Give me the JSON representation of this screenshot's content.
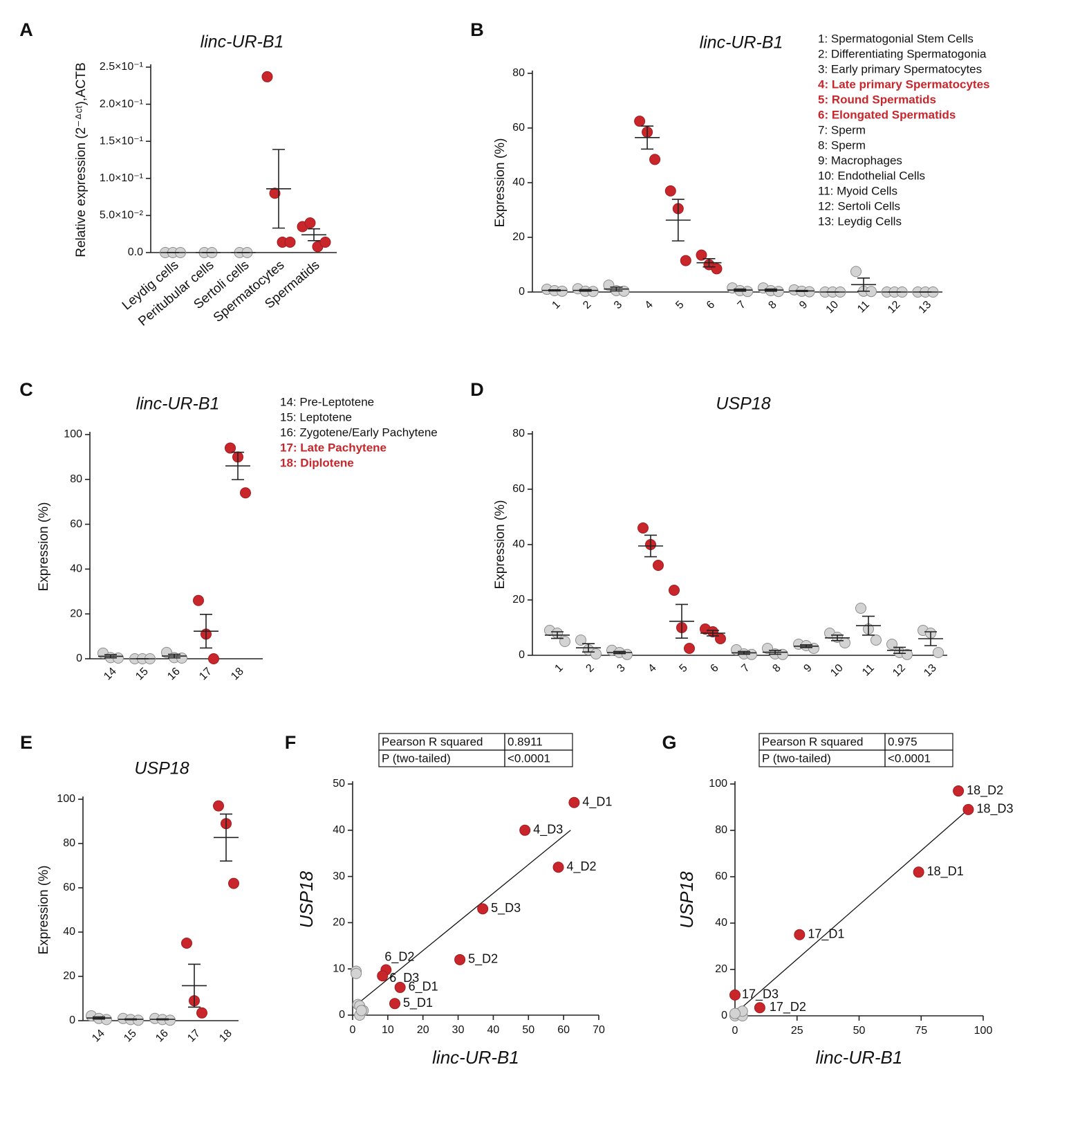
{
  "chart_data": [
    {
      "type": "dotplot",
      "panel": "A",
      "title": "linc-UR-B1",
      "ylabel": "Relative expression (2⁻ᐞᶜᵗ),ACTB",
      "categories": [
        "Leydig cells",
        "Peritubular cells",
        "Sertoli cells",
        "Spermatocytes",
        "Spermatids"
      ],
      "groups": [
        {
          "values": [
            0,
            0,
            0
          ],
          "mean": 0,
          "sem": 0,
          "color": "#d3d3d3"
        },
        {
          "values": [
            0,
            0
          ],
          "mean": 0,
          "sem": 0,
          "color": "#d3d3d3"
        },
        {
          "values": [
            0,
            0
          ],
          "mean": 0,
          "sem": 0,
          "color": "#d3d3d3"
        },
        {
          "values": [
            0.237,
            0.08,
            0.014,
            0.014
          ],
          "mean": 0.086,
          "sem": 0.053,
          "color": "#c8262b"
        },
        {
          "values": [
            0.035,
            0.04,
            0.008,
            0.014
          ],
          "mean": 0.024,
          "sem": 0.008,
          "color": "#c8262b"
        }
      ],
      "ylim": [
        0,
        0.25
      ],
      "yticks": [
        {
          "value": 0,
          "label": "0.0"
        },
        {
          "value": 0.05,
          "label": "5.0×10⁻²"
        },
        {
          "value": 0.1,
          "label": "1.0×10⁻¹"
        },
        {
          "value": 0.15,
          "label": "1.5×10⁻¹"
        },
        {
          "value": 0.2,
          "label": "2.0×10⁻¹"
        },
        {
          "value": 0.25,
          "label": "2.5×10⁻¹"
        }
      ]
    },
    {
      "type": "dotplot",
      "panel": "B",
      "title": "linc-UR-B1",
      "ylabel": "Expression (%)",
      "categories": [
        "1",
        "2",
        "3",
        "4",
        "5",
        "6",
        "7",
        "8",
        "9",
        "10",
        "11",
        "12",
        "13"
      ],
      "groups": [
        {
          "values": [
            1,
            0.5,
            0.3
          ],
          "mean": 0.6,
          "sem": 0.2,
          "color": "#d3d3d3"
        },
        {
          "values": [
            1.2,
            0.3,
            0.2
          ],
          "mean": 0.6,
          "sem": 0.3,
          "color": "#d3d3d3"
        },
        {
          "values": [
            2.5,
            0.5,
            0.3
          ],
          "mean": 1.1,
          "sem": 0.7,
          "color": "#d3d3d3"
        },
        {
          "values": [
            62.5,
            58.5,
            48.5
          ],
          "mean": 56.5,
          "sem": 4.2,
          "color": "#c8262b"
        },
        {
          "values": [
            37,
            30.5,
            11.5
          ],
          "mean": 26.3,
          "sem": 7.6,
          "color": "#c8262b"
        },
        {
          "values": [
            13.5,
            10,
            8.5
          ],
          "mean": 10.7,
          "sem": 1.5,
          "color": "#c8262b"
        },
        {
          "values": [
            1.5,
            0.5,
            0.2
          ],
          "mean": 0.7,
          "sem": 0.4,
          "color": "#d3d3d3"
        },
        {
          "values": [
            1.5,
            0.5,
            0.2
          ],
          "mean": 0.7,
          "sem": 0.4,
          "color": "#d3d3d3"
        },
        {
          "values": [
            0.8,
            0.3,
            0.1
          ],
          "mean": 0.4,
          "sem": 0.2,
          "color": "#d3d3d3"
        },
        {
          "values": [
            0,
            0,
            0
          ],
          "mean": 0,
          "sem": 0,
          "color": "#d3d3d3"
        },
        {
          "values": [
            7.5,
            0.3,
            0.2
          ],
          "mean": 2.7,
          "sem": 2.4,
          "color": "#d3d3d3"
        },
        {
          "values": [
            0,
            0,
            0
          ],
          "mean": 0,
          "sem": 0,
          "color": "#d3d3d3"
        },
        {
          "values": [
            0,
            0,
            0
          ],
          "mean": 0,
          "sem": 0,
          "color": "#d3d3d3"
        }
      ],
      "ylim": [
        0,
        80
      ],
      "yticks": [
        0,
        20,
        40,
        60,
        80
      ],
      "key": [
        {
          "label": "1: Spermatogonial Stem Cells",
          "color": "#111111"
        },
        {
          "label": "2: Differentiating Spermatogonia",
          "color": "#111111"
        },
        {
          "label": "3: Early primary Spermatocytes",
          "color": "#111111"
        },
        {
          "label": "4: Late primary Spermatocytes",
          "color": "#c8262b"
        },
        {
          "label": "5: Round Spermatids",
          "color": "#c8262b"
        },
        {
          "label": "6: Elongated Spermatids",
          "color": "#c8262b"
        },
        {
          "label": "7: Sperm",
          "color": "#111111"
        },
        {
          "label": "8: Sperm",
          "color": "#111111"
        },
        {
          "label": "9: Macrophages",
          "color": "#111111"
        },
        {
          "label": "10: Endothelial Cells",
          "color": "#111111"
        },
        {
          "label": "11: Myoid Cells",
          "color": "#111111"
        },
        {
          "label": "12: Sertoli Cells",
          "color": "#111111"
        },
        {
          "label": "13: Leydig Cells",
          "color": "#111111"
        }
      ]
    },
    {
      "type": "dotplot",
      "panel": "C",
      "title": "linc-UR-B1",
      "ylabel": "Expression (%)",
      "categories": [
        "14",
        "15",
        "16",
        "17",
        "18"
      ],
      "groups": [
        {
          "values": [
            2.5,
            0.5,
            0.3
          ],
          "mean": 1.1,
          "sem": 0.7,
          "color": "#d3d3d3"
        },
        {
          "values": [
            0,
            0,
            0
          ],
          "mean": 0,
          "sem": 0,
          "color": "#d3d3d3"
        },
        {
          "values": [
            2.8,
            0.5,
            0.3
          ],
          "mean": 1.2,
          "sem": 0.8,
          "color": "#d3d3d3"
        },
        {
          "values": [
            26,
            11,
            0
          ],
          "mean": 12.3,
          "sem": 7.5,
          "color": "#c8262b"
        },
        {
          "values": [
            94,
            90,
            74
          ],
          "mean": 86,
          "sem": 6.1,
          "color": "#c8262b"
        }
      ],
      "ylim": [
        0,
        100
      ],
      "yticks": [
        0,
        20,
        40,
        60,
        80,
        100
      ],
      "key": [
        {
          "label": "14: Pre-Leptotene",
          "color": "#111111"
        },
        {
          "label": "15: Leptotene",
          "color": "#111111"
        },
        {
          "label": "16: Zygotene/Early Pachytene",
          "color": "#111111"
        },
        {
          "label": "17: Late Pachytene",
          "color": "#c8262b"
        },
        {
          "label": "18: Diplotene",
          "color": "#c8262b"
        }
      ]
    },
    {
      "type": "dotplot",
      "panel": "D",
      "title": "USP18",
      "ylabel": "Expression (%)",
      "categories": [
        "1",
        "2",
        "3",
        "4",
        "5",
        "6",
        "7",
        "8",
        "9",
        "10",
        "11",
        "12",
        "13"
      ],
      "groups": [
        {
          "values": [
            9,
            8,
            5
          ],
          "mean": 7.3,
          "sem": 1.2,
          "color": "#d3d3d3"
        },
        {
          "values": [
            5.5,
            2,
            0.5
          ],
          "mean": 2.7,
          "sem": 1.5,
          "color": "#d3d3d3"
        },
        {
          "values": [
            1.8,
            1,
            0.3
          ],
          "mean": 1,
          "sem": 0.4,
          "color": "#d3d3d3"
        },
        {
          "values": [
            46,
            40,
            32.5
          ],
          "mean": 39.5,
          "sem": 3.9,
          "color": "#c8262b"
        },
        {
          "values": [
            23.5,
            10,
            2.5
          ],
          "mean": 12.3,
          "sem": 6.1,
          "color": "#c8262b"
        },
        {
          "values": [
            9.5,
            8.5,
            6
          ],
          "mean": 8,
          "sem": 1,
          "color": "#c8262b"
        },
        {
          "values": [
            2,
            0.5,
            0.3
          ],
          "mean": 0.9,
          "sem": 0.5,
          "color": "#d3d3d3"
        },
        {
          "values": [
            2.5,
            0.5,
            0.3
          ],
          "mean": 1.1,
          "sem": 0.7,
          "color": "#d3d3d3"
        },
        {
          "values": [
            4,
            3.5,
            2.5
          ],
          "mean": 3.3,
          "sem": 0.5,
          "color": "#d3d3d3"
        },
        {
          "values": [
            8,
            6.5,
            4.5
          ],
          "mean": 6.3,
          "sem": 1,
          "color": "#d3d3d3"
        },
        {
          "values": [
            17,
            9.5,
            5.5
          ],
          "mean": 10.7,
          "sem": 3.4,
          "color": "#d3d3d3"
        },
        {
          "values": [
            4,
            1,
            0.3
          ],
          "mean": 1.8,
          "sem": 1.1,
          "color": "#d3d3d3"
        },
        {
          "values": [
            9,
            8,
            1
          ],
          "mean": 6,
          "sem": 2.5,
          "color": "#d3d3d3"
        }
      ],
      "ylim": [
        0,
        80
      ],
      "yticks": [
        0,
        20,
        40,
        60,
        80
      ]
    },
    {
      "type": "dotplot",
      "panel": "E",
      "title": "USP18",
      "ylabel": "Expression (%)",
      "categories": [
        "14",
        "15",
        "16",
        "17",
        "18"
      ],
      "groups": [
        {
          "values": [
            2.2,
            1,
            0.5
          ],
          "mean": 1.2,
          "sem": 0.5,
          "color": "#d3d3d3"
        },
        {
          "values": [
            1,
            0.5,
            0.2
          ],
          "mean": 0.6,
          "sem": 0.2,
          "color": "#d3d3d3"
        },
        {
          "values": [
            1,
            0.5,
            0.2
          ],
          "mean": 0.6,
          "sem": 0.2,
          "color": "#d3d3d3"
        },
        {
          "values": [
            35,
            9,
            3.5
          ],
          "mean": 15.8,
          "sem": 9.7,
          "color": "#c8262b"
        },
        {
          "values": [
            97,
            89,
            62
          ],
          "mean": 82.7,
          "sem": 10.6,
          "color": "#c8262b"
        }
      ],
      "ylim": [
        0,
        100
      ],
      "yticks": [
        0,
        20,
        40,
        60,
        80,
        100
      ]
    },
    {
      "type": "scatter",
      "panel": "F",
      "xlabel": "linc-UR-B1",
      "ylabel": "USP18",
      "table": [
        [
          "Pearson R squared",
          "0.8911"
        ],
        [
          "P (two-tailed)",
          "<0.0001"
        ]
      ],
      "x": [
        63,
        49,
        58.5,
        37,
        30.5,
        9.5,
        8.5,
        13.5,
        12,
        1,
        1,
        1.5,
        2,
        3,
        2,
        2.5
      ],
      "y": [
        46,
        40,
        32,
        23,
        12,
        9.8,
        8.5,
        6,
        2.5,
        9.5,
        9,
        2.3,
        2,
        1,
        0,
        1
      ],
      "labels": [
        "4_D1",
        "4_D3",
        "4_D2",
        "5_D3",
        "5_D2",
        "6_D2",
        "6_D3",
        "6_D1",
        "5_D1",
        null,
        null,
        null,
        null,
        null,
        null,
        null
      ],
      "colors": [
        "#c8262b",
        "#c8262b",
        "#c8262b",
        "#c8262b",
        "#c8262b",
        "#c8262b",
        "#c8262b",
        "#c8262b",
        "#c8262b",
        "#d3d3d3",
        "#d3d3d3",
        "#d3d3d3",
        "#d3d3d3",
        "#d3d3d3",
        "#d3d3d3",
        "#d3d3d3"
      ],
      "fit": {
        "x": [
          1.5,
          62
        ],
        "y": [
          2.5,
          40
        ]
      },
      "xlim": [
        0,
        70
      ],
      "xticks": [
        0,
        10,
        20,
        30,
        40,
        50,
        60,
        70
      ],
      "ylim": [
        0,
        50
      ],
      "yticks": [
        0,
        10,
        20,
        30,
        40,
        50
      ]
    },
    {
      "type": "scatter",
      "panel": "G",
      "xlabel": "linc-UR-B1",
      "ylabel": "USP18",
      "table": [
        [
          "Pearson R squared",
          "0.975"
        ],
        [
          "P (two-tailed)",
          "<0.0001"
        ]
      ],
      "x": [
        90,
        94,
        74,
        26,
        0,
        10,
        0,
        1,
        3,
        3,
        0
      ],
      "y": [
        97,
        89,
        62,
        35,
        9,
        3.5,
        0,
        1,
        0,
        2,
        1
      ],
      "labels": [
        "18_D2",
        "18_D3",
        "18_D1",
        "17_D1",
        "17_D3",
        "17_D2",
        null,
        null,
        null,
        null,
        null
      ],
      "colors": [
        "#c8262b",
        "#c8262b",
        "#c8262b",
        "#c8262b",
        "#c8262b",
        "#c8262b",
        "#d3d3d3",
        "#d3d3d3",
        "#d3d3d3",
        "#d3d3d3",
        "#d3d3d3"
      ],
      "fit": {
        "x": [
          0,
          95
        ],
        "y": [
          1,
          90
        ]
      },
      "xlim": [
        0,
        100
      ],
      "xticks": [
        0,
        25,
        50,
        75,
        100
      ],
      "ylim": [
        0,
        100
      ],
      "yticks": [
        0,
        20,
        40,
        60,
        80,
        100
      ]
    }
  ]
}
